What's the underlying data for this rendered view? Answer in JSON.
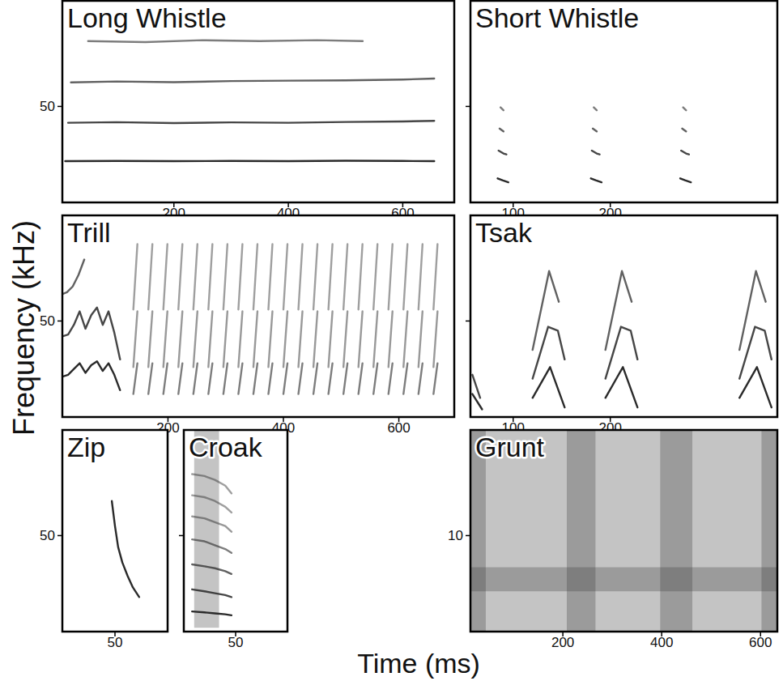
{
  "figure": {
    "xlabel": "Time (ms)",
    "ylabel": "Frequency (kHz)"
  },
  "chart_data": [
    {
      "type": "spectrogram",
      "title": "Long Whistle",
      "xlim": [
        5,
        690
      ],
      "ylim": [
        0,
        105
      ],
      "xticks": [
        200,
        400,
        600
      ],
      "yticks": [
        50
      ],
      "series": [
        {
          "x": [
            10,
            100,
            200,
            300,
            400,
            500,
            600,
            655
          ],
          "values": [
            21.5,
            21.6,
            21.5,
            21.6,
            21.5,
            21.7,
            21.6,
            21.5
          ]
        },
        {
          "x": [
            15,
            100,
            200,
            300,
            400,
            500,
            600,
            655
          ],
          "values": [
            41.5,
            41.8,
            41.3,
            41.7,
            41.5,
            41.9,
            42.2,
            42.5
          ]
        },
        {
          "x": [
            20,
            100,
            200,
            300,
            400,
            500,
            600,
            655
          ],
          "values": [
            62.5,
            63,
            62.6,
            63.2,
            63.4,
            63.6,
            64,
            64.5
          ]
        },
        {
          "x": [
            50,
            150,
            250,
            350,
            450,
            530
          ],
          "values": [
            84,
            83.5,
            84.5,
            84,
            84.5,
            84
          ]
        }
      ]
    },
    {
      "type": "spectrogram",
      "title": "Short Whistle",
      "xlim": [
        56,
        372
      ],
      "ylim": [
        0,
        105
      ],
      "xticks": [
        100,
        200
      ],
      "yticks": [
        50
      ],
      "tick_labels": "x",
      "series": [
        {
          "x": [
            84,
            89,
            95,
            95,
            180,
            185,
            191,
            191,
            272,
            277,
            283
          ],
          "values": [
            12.5,
            11.5,
            10.5,
            null,
            12.5,
            11.5,
            10.5,
            null,
            12.5,
            11.5,
            10.5
          ]
        },
        {
          "x": [
            85,
            90,
            93,
            93,
            181,
            186,
            189,
            189,
            273,
            278,
            281
          ],
          "values": [
            27,
            25.5,
            25,
            null,
            27,
            25.5,
            25,
            null,
            27,
            25.5,
            25
          ]
        },
        {
          "x": [
            86,
            90,
            90,
            182,
            186,
            186,
            274,
            278
          ],
          "values": [
            38.5,
            37,
            null,
            38.5,
            37,
            null,
            38.5,
            37
          ]
        },
        {
          "x": [
            87,
            90,
            90,
            183,
            186,
            186,
            275,
            278
          ],
          "values": [
            49.5,
            48,
            null,
            49.5,
            48,
            null,
            49.5,
            48
          ]
        }
      ]
    },
    {
      "type": "spectrogram",
      "title": "Trill",
      "xlim": [
        17,
        696
      ],
      "ylim": [
        0,
        105
      ],
      "xticks": [
        200,
        400,
        600
      ],
      "yticks": [
        50
      ],
      "series": [
        {
          "x": [
            17,
            27,
            37,
            47,
            57,
            67,
            77,
            87,
            97,
            107,
            117
          ],
          "values": [
            21,
            22,
            25,
            28,
            23,
            27,
            29,
            24,
            28,
            22,
            14
          ]
        },
        {
          "x": [
            17,
            27,
            37,
            47,
            57,
            67,
            77,
            87,
            97,
            107,
            117
          ],
          "values": [
            42,
            43,
            48,
            55,
            46,
            53,
            57,
            48,
            55,
            44,
            30
          ]
        },
        {
          "x": [
            17,
            25,
            35,
            45,
            55
          ],
          "values": [
            64,
            65,
            68,
            74,
            82
          ]
        },
        {
          "x": [
            140,
            147,
            147,
            166,
            173,
            173,
            192,
            199,
            199,
            218,
            225,
            225,
            244,
            251,
            251,
            270,
            277,
            277,
            296,
            303,
            303,
            322,
            329,
            329,
            348,
            355,
            355,
            374,
            381,
            381,
            400,
            407,
            407,
            426,
            433,
            433,
            452,
            459,
            459,
            478,
            485,
            485,
            504,
            511,
            511,
            530,
            537,
            537,
            556,
            563,
            563,
            582,
            589,
            589,
            608,
            615,
            615,
            634,
            641,
            641,
            660,
            667,
            667
          ],
          "values": [
            12,
            28,
            null,
            12,
            28,
            null,
            12,
            28,
            null,
            12,
            28,
            null,
            12,
            28,
            null,
            12,
            28,
            null,
            12,
            28,
            null,
            12,
            28,
            null,
            12,
            28,
            null,
            12,
            28,
            null,
            12,
            28,
            null,
            12,
            28,
            null,
            12,
            28,
            null,
            12,
            28,
            null,
            12,
            28,
            null,
            12,
            28,
            null,
            12,
            28,
            null,
            12,
            28,
            null,
            12,
            28,
            null,
            12,
            28,
            null,
            12,
            28,
            null
          ]
        },
        {
          "x": [
            140,
            147,
            147,
            166,
            173,
            173,
            192,
            199,
            199,
            218,
            225,
            225,
            244,
            251,
            251,
            270,
            277,
            277,
            296,
            303,
            303,
            322,
            329,
            329,
            348,
            355,
            355,
            374,
            381,
            381,
            400,
            407,
            407,
            426,
            433,
            433,
            452,
            459,
            459,
            478,
            485,
            485,
            504,
            511,
            511,
            530,
            537,
            537,
            556,
            563,
            563,
            582,
            589,
            589,
            608,
            615,
            615,
            634,
            641,
            641,
            660,
            667,
            667
          ],
          "values": [
            26,
            55,
            null,
            26,
            55,
            null,
            26,
            55,
            null,
            26,
            55,
            null,
            26,
            55,
            null,
            26,
            55,
            null,
            26,
            55,
            null,
            26,
            55,
            null,
            26,
            55,
            null,
            26,
            55,
            null,
            26,
            55,
            null,
            26,
            55,
            null,
            26,
            55,
            null,
            26,
            55,
            null,
            26,
            55,
            null,
            26,
            55,
            null,
            26,
            55,
            null,
            26,
            55,
            null,
            26,
            55,
            null,
            26,
            55,
            null,
            26,
            55,
            null
          ]
        },
        {
          "x": [
            140,
            147,
            147,
            166,
            173,
            173,
            192,
            199,
            199,
            218,
            225,
            225,
            244,
            251,
            251,
            270,
            277,
            277,
            296,
            303,
            303,
            322,
            329,
            329,
            348,
            355,
            355,
            374,
            381,
            381,
            400,
            407,
            407,
            426,
            433,
            433,
            452,
            459,
            459,
            478,
            485,
            485,
            504,
            511,
            511,
            530,
            537,
            537,
            556,
            563,
            563,
            582,
            589,
            589,
            608,
            615,
            615,
            634,
            641,
            641,
            660,
            667,
            667
          ],
          "values": [
            56,
            90,
            null,
            56,
            90,
            null,
            56,
            90,
            null,
            56,
            90,
            null,
            56,
            90,
            null,
            56,
            90,
            null,
            56,
            90,
            null,
            56,
            90,
            null,
            56,
            90,
            null,
            56,
            90,
            null,
            56,
            90,
            null,
            56,
            90,
            null,
            56,
            90,
            null,
            56,
            90,
            null,
            56,
            90,
            null,
            56,
            90,
            null,
            56,
            90,
            null,
            56,
            90,
            null,
            56,
            90,
            null,
            56,
            90,
            null,
            56,
            90,
            null
          ]
        }
      ]
    },
    {
      "type": "spectrogram",
      "title": "Tsak",
      "xlim": [
        56,
        372
      ],
      "ylim": [
        0,
        105
      ],
      "xticks": [
        100,
        200
      ],
      "yticks": [
        50
      ],
      "tick_labels": "x",
      "series": [
        {
          "x": [
            58,
            68,
            68,
            120,
            138,
            153,
            153,
            195,
            213,
            228,
            228,
            333,
            351,
            366
          ],
          "values": [
            12,
            4,
            null,
            10,
            26,
            5,
            null,
            10,
            26,
            5,
            null,
            10,
            26,
            5
          ]
        },
        {
          "x": [
            58,
            66,
            66,
            120,
            136,
            146,
            153,
            153,
            195,
            211,
            221,
            228,
            228,
            333,
            349,
            359,
            366
          ],
          "values": [
            22,
            10,
            null,
            20,
            47,
            45,
            30,
            null,
            20,
            47,
            45,
            30,
            null,
            20,
            47,
            45,
            30
          ]
        },
        {
          "x": [
            120,
            137,
            147,
            147,
            195,
            212,
            222,
            222,
            333,
            350,
            360
          ],
          "values": [
            35,
            76,
            60,
            null,
            35,
            76,
            60,
            null,
            35,
            76,
            60
          ]
        }
      ]
    },
    {
      "type": "spectrogram",
      "title": "Zip",
      "xlim": [
        0,
        100
      ],
      "ylim": [
        0,
        105
      ],
      "xticks": [
        50
      ],
      "yticks": [
        50
      ],
      "series": [
        {
          "x": [
            47,
            50,
            53,
            57,
            62,
            67,
            73
          ],
          "values": [
            68,
            55,
            44,
            36,
            29,
            23,
            18
          ]
        }
      ]
    },
    {
      "type": "spectrogram",
      "title": "Croak",
      "xlim": [
        0,
        100
      ],
      "ylim": [
        0,
        105
      ],
      "xticks": [
        50
      ],
      "yticks": [
        50
      ],
      "tick_labels": "x",
      "bands": {
        "start": [
          10
        ],
        "end": [
          34
        ],
        "low": [
          2
        ],
        "high": [
          105
        ]
      },
      "series": [
        {
          "x": [
            8,
            20,
            30,
            40,
            46
          ],
          "values": [
            10.5,
            10,
            9.5,
            9,
            8.5
          ]
        },
        {
          "x": [
            8,
            20,
            30,
            40,
            46
          ],
          "values": [
            22,
            21,
            20,
            19,
            18
          ]
        },
        {
          "x": [
            8,
            20,
            30,
            40,
            46
          ],
          "values": [
            35,
            34,
            33,
            31.5,
            30
          ]
        },
        {
          "x": [
            8,
            20,
            30,
            40,
            46
          ],
          "values": [
            48,
            47,
            45,
            43,
            41
          ]
        },
        {
          "x": [
            8,
            20,
            30,
            40,
            46
          ],
          "values": [
            60,
            59,
            57,
            55,
            52
          ]
        },
        {
          "x": [
            8,
            20,
            30,
            40,
            46
          ],
          "values": [
            71,
            70,
            68,
            65,
            62
          ]
        },
        {
          "x": [
            8,
            20,
            30,
            40,
            46
          ],
          "values": [
            82,
            81,
            79,
            76,
            72
          ]
        }
      ]
    },
    {
      "type": "spectrogram",
      "title": "Grunt",
      "xlim": [
        13,
        634
      ],
      "ylim": [
        0,
        21
      ],
      "xticks": [
        200,
        400,
        600
      ],
      "yticks": [
        10
      ],
      "bands": {
        "start": [
          13,
          13,
          13,
          208,
          397,
          602
        ],
        "end": [
          634,
          634,
          44,
          266,
          462,
          634
        ],
        "low": [
          0,
          4.2,
          0,
          0,
          0,
          0
        ],
        "high": [
          21,
          6.7,
          21,
          21,
          21,
          21
        ]
      }
    }
  ]
}
